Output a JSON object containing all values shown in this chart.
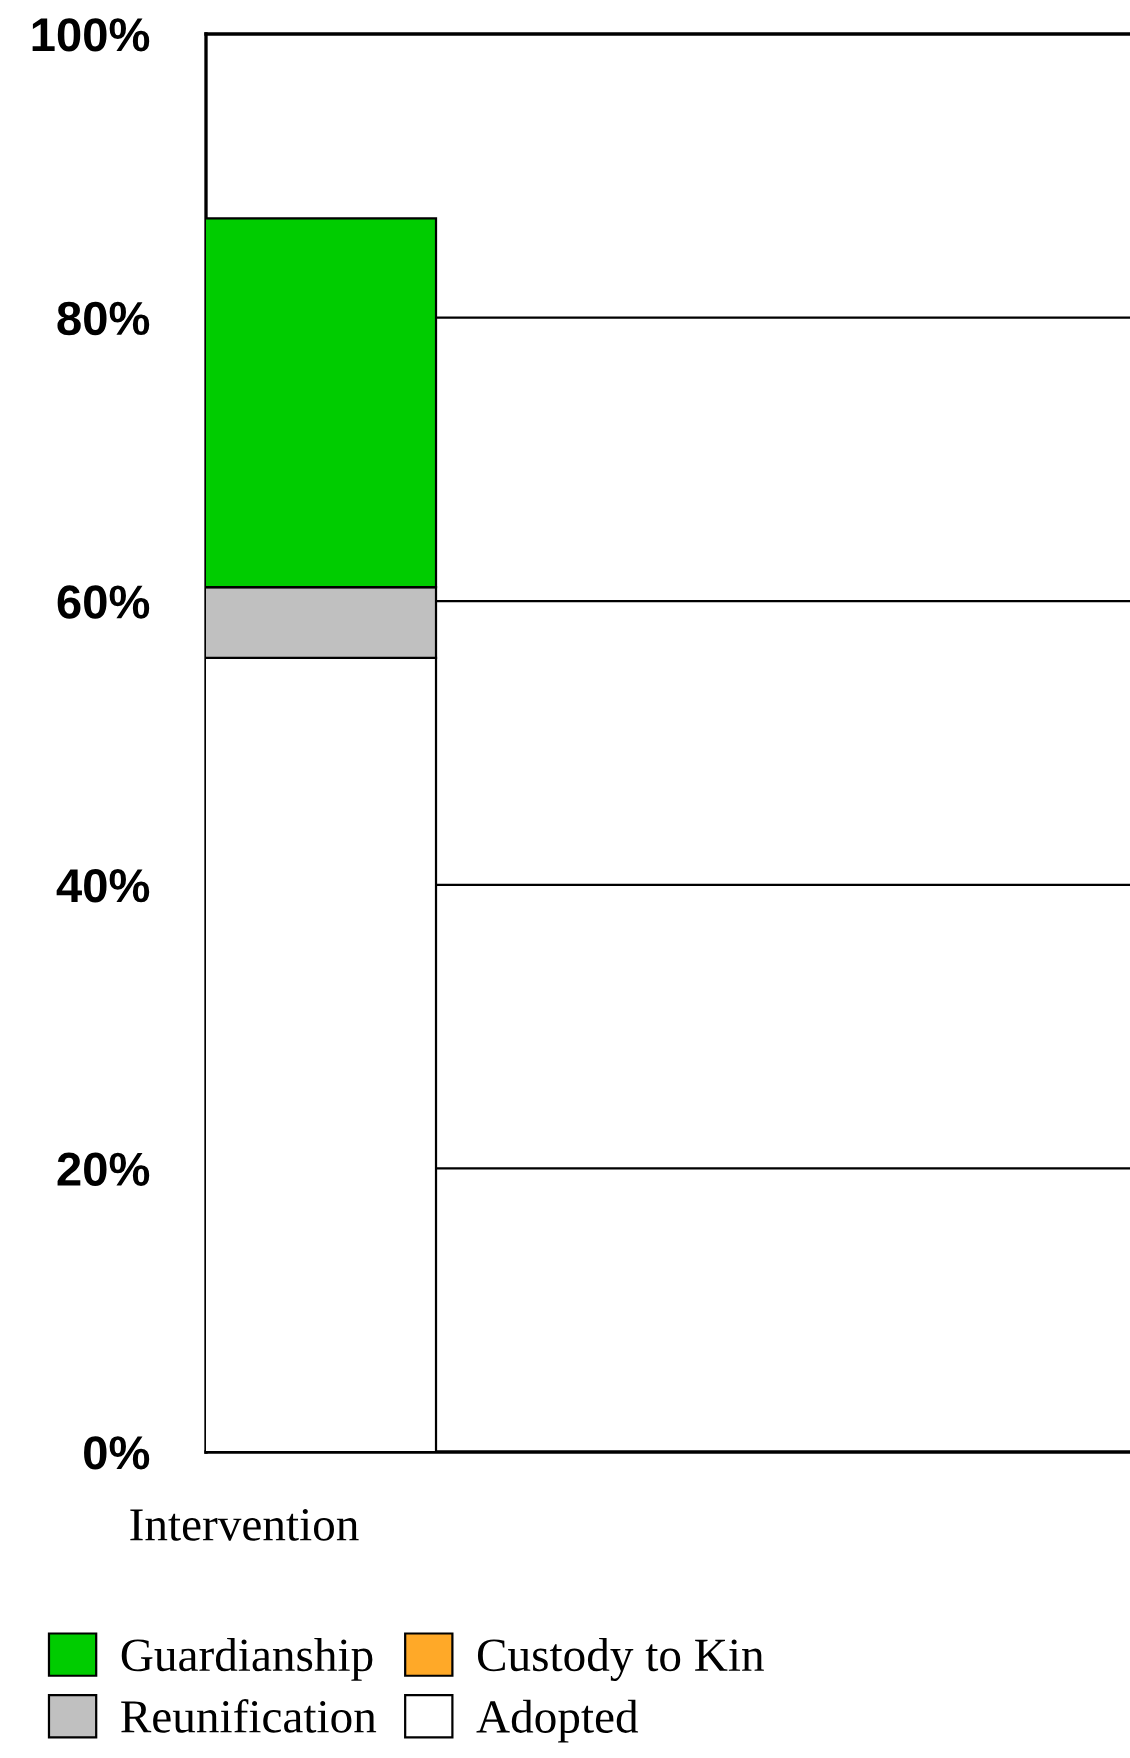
{
  "chart_data": {
    "type": "bar",
    "stacked": true,
    "categories": [
      "Intervention"
    ],
    "series": [
      {
        "name": "Adopted",
        "color": "#ffffff",
        "values": [
          56
        ]
      },
      {
        "name": "Reunification",
        "color": "#c0c0c0",
        "values": [
          5
        ]
      },
      {
        "name": "Custody to Kin",
        "color": "#ffa928",
        "values": [
          0
        ]
      },
      {
        "name": "Guardianship",
        "color": "#00cc00",
        "values": [
          26
        ]
      }
    ],
    "ylim": [
      0,
      100
    ],
    "yticks": [
      {
        "value": 0,
        "label": "0%"
      },
      {
        "value": 20,
        "label": "20%"
      },
      {
        "value": 40,
        "label": "40%"
      },
      {
        "value": 60,
        "label": "60%"
      },
      {
        "value": 80,
        "label": "80%"
      },
      {
        "value": 100,
        "label": "100%"
      }
    ],
    "grid": "y",
    "legend": "bottom"
  }
}
